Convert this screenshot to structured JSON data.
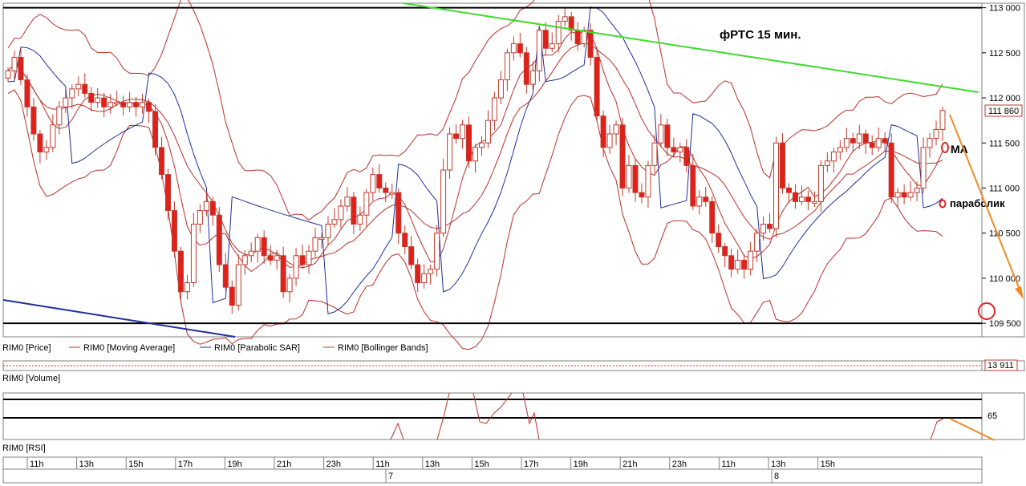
{
  "chart_data": {
    "type": "candlestick",
    "annotation_title": "фРТС   15 мин.",
    "price_axis": {
      "ticks": [
        "113 000",
        "112 500",
        "112 000",
        "111 500",
        "111 000",
        "110 500",
        "110 000",
        "109 500"
      ],
      "ylim": [
        109350,
        113050
      ],
      "current_value": "111 860"
    },
    "legend": [
      {
        "label": "RIM0 [Price]",
        "color": "#000000"
      },
      {
        "label": "RIM0 [Moving Average]",
        "color": "#c0392b"
      },
      {
        "label": "RIM0 [Parabolic SAR]",
        "color": "#1f2f9a"
      },
      {
        "label": "RIM0 [Bollinger Bands]",
        "color": "#c0392b"
      }
    ],
    "volume_panel": {
      "title": "RIM0 [Volume]",
      "value": "13 911"
    },
    "rsi_panel": {
      "title": "RIM0 [RSI]",
      "tick": "65"
    },
    "x_axis": {
      "time_labels": [
        "11h",
        "13h",
        "15h",
        "17h",
        "19h",
        "21h",
        "23h",
        "11h",
        "13h",
        "15h",
        "17h",
        "19h",
        "21h",
        "23h",
        "11h",
        "13h",
        "15h"
      ],
      "date_labels": [
        "7",
        "8"
      ]
    },
    "annotations": {
      "ma": "MA",
      "sar": "параболик"
    },
    "horizontal_levels": [
      113000,
      109500
    ],
    "candle_closes": [
      112300,
      112450,
      112200,
      111900,
      111600,
      111400,
      111450,
      111700,
      111900,
      112000,
      112100,
      112150,
      112050,
      111950,
      112000,
      111900,
      111950,
      111950,
      111900,
      111950,
      111900,
      111950,
      111850,
      111450,
      111150,
      110750,
      110300,
      109850,
      109950,
      110600,
      110750,
      110850,
      110700,
      110150,
      109900,
      109700,
      110150,
      110250,
      110300,
      110450,
      110250,
      110200,
      110250,
      109850,
      110000,
      110250,
      110150,
      110300,
      110450,
      110450,
      110600,
      110650,
      110800,
      110900,
      110600,
      110700,
      110950,
      111150,
      111000,
      110950,
      110950,
      110500,
      110350,
      110150,
      109950,
      110050,
      110100,
      110500,
      111200,
      111600,
      111550,
      111700,
      111300,
      111450,
      111500,
      111750,
      112000,
      112200,
      112500,
      112600,
      112500,
      112150,
      112300,
      112750,
      112550,
      112600,
      112850,
      112900,
      112750,
      112600,
      112750,
      112450,
      111800,
      111450,
      111600,
      111700,
      111000,
      111250,
      110950,
      110900,
      111250,
      111500,
      111700,
      111450,
      111400,
      111450,
      111250,
      110800,
      110900,
      110850,
      110500,
      110350,
      110250,
      110100,
      110200,
      110100,
      110300,
      110500,
      110600,
      110550,
      111500,
      111000,
      110950,
      110850,
      110900,
      110850,
      110850,
      111250,
      111300,
      111400,
      111450,
      111550,
      111500,
      111600,
      111500,
      111450,
      111550,
      111500,
      110900,
      110950,
      110900,
      110950,
      111000,
      111450,
      111550,
      111650,
      111860
    ]
  },
  "colors": {
    "bull_candle": "#ffffff",
    "bear_candle": "#e0201b",
    "indicator_red": "#b8302a",
    "sar_blue": "#1f2f9a",
    "trend_green": "#3ddc2a",
    "arrow_orange": "#f08a24",
    "marker_red": "#e02020"
  }
}
